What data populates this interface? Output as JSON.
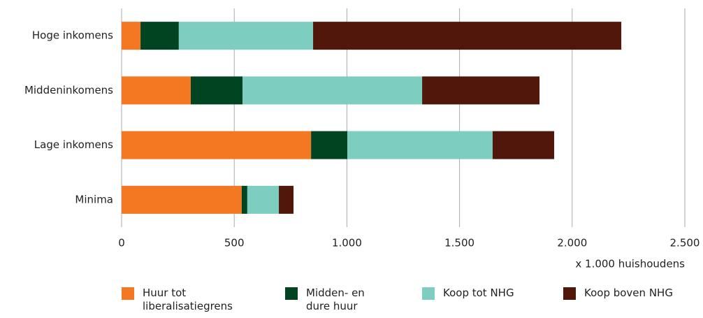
{
  "chart_data": {
    "type": "bar",
    "orientation": "horizontal",
    "stacked": true,
    "categories": [
      "Hoge inkomens",
      "Middeninkomens",
      "Lage inkomens",
      "Minima"
    ],
    "series": [
      {
        "name": "Huur tot liberalisatiegrens",
        "color": "#f47721",
        "values": [
          84,
          307,
          841,
          533
        ]
      },
      {
        "name": "Midden- en dure huur",
        "color": "#004422",
        "values": [
          170,
          230,
          161,
          25
        ]
      },
      {
        "name": "Koop tot NHG",
        "color": "#7dcdc0",
        "values": [
          596,
          797,
          645,
          140
        ]
      },
      {
        "name": "Koop boven NHG",
        "color": "#52170b",
        "values": [
          1368,
          521,
          273,
          65
        ]
      }
    ],
    "xlabel": "x 1.000 huishoudens",
    "xlim": [
      0,
      2500
    ],
    "xticks": [
      0,
      500,
      {
        "value": 1000,
        "label": "1.000"
      },
      {
        "value": 1500,
        "label": "1.500"
      },
      {
        "value": 2000,
        "label": "2.000"
      },
      {
        "value": 2500,
        "label": "2.500"
      }
    ],
    "grid": true,
    "legend": "bottom"
  }
}
